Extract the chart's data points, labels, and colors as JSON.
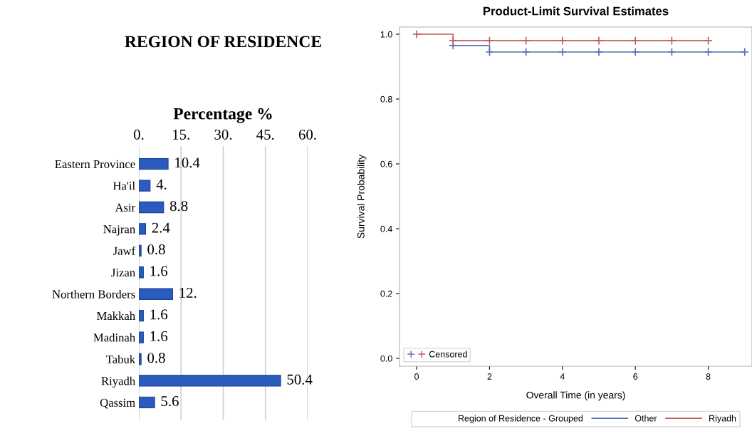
{
  "chart_data": [
    {
      "type": "bar",
      "orientation": "horizontal",
      "title": "REGION OF RESIDENCE",
      "xlabel": "Percentage %",
      "categories": [
        "Eastern Province",
        "Ha'il",
        "Asir",
        "Najran",
        "Jawf",
        "Jizan",
        "Northern Borders",
        "Makkah",
        "Madinah",
        "Tabuk",
        "Riyadh",
        "Qassim"
      ],
      "values": [
        10.4,
        4,
        8.8,
        2.4,
        0.8,
        1.6,
        12,
        1.6,
        1.6,
        0.8,
        50.4,
        5.6
      ],
      "value_labels": [
        "10.4",
        "4.",
        "8.8",
        "2.4",
        "0.8",
        "1.6",
        "12.",
        "1.6",
        "1.6",
        "0.8",
        "50.4",
        "5.6"
      ],
      "color": "#2a5cc0",
      "xlim": [
        0,
        60
      ],
      "xticks": [
        {
          "value": 0,
          "label": "0."
        },
        {
          "value": 15,
          "label": "15."
        },
        {
          "value": 30,
          "label": "30."
        },
        {
          "value": 45,
          "label": "45."
        },
        {
          "value": 60,
          "label": "60."
        }
      ],
      "grid": "x"
    },
    {
      "type": "step",
      "title": "Product-Limit Survival Estimates",
      "xlabel": "Overall Time (in years)",
      "ylabel": "Survival Probability",
      "legend_title": "Region of Residence - Grouped",
      "legend": "bottom",
      "xlim": [
        -0.47,
        9.2
      ],
      "ylim": [
        -0.024,
        1.022
      ],
      "xticks": [
        0,
        2,
        4,
        6,
        8
      ],
      "yticks": [
        {
          "value": 0,
          "label": "0.0"
        },
        {
          "value": 0.2,
          "label": "0.2"
        },
        {
          "value": 0.4,
          "label": "0.4"
        },
        {
          "value": 0.6,
          "label": "0.6"
        },
        {
          "value": 0.8,
          "label": "0.8"
        },
        {
          "value": 1,
          "label": "1.0"
        }
      ],
      "series": [
        {
          "name": "Other",
          "color": "#5a6fb5",
          "x": [
            1,
            2,
            9
          ],
          "values": [
            0.965,
            0.945,
            0.945
          ]
        },
        {
          "name": "Riyadh",
          "color": "#c05a5a",
          "x": [
            0,
            1,
            8
          ],
          "values": [
            1.0,
            0.98,
            0.98
          ]
        },
        {
          "name": "Censored",
          "type": "scatter",
          "marker": "cross",
          "x": [
            1,
            2,
            3,
            4,
            5,
            6,
            7,
            8,
            9,
            0,
            1,
            2,
            3,
            4,
            5,
            6,
            7,
            8
          ],
          "values": [
            0.965,
            0.945,
            0.945,
            0.945,
            0.945,
            0.945,
            0.945,
            0.945,
            0.945,
            1.0,
            0.98,
            0.98,
            0.98,
            0.98,
            0.98,
            0.98,
            0.98,
            0.98
          ],
          "colors": [
            "#5a6fb5",
            "#5a6fb5",
            "#5a6fb5",
            "#5a6fb5",
            "#5a6fb5",
            "#5a6fb5",
            "#5a6fb5",
            "#5a6fb5",
            "#5a6fb5",
            "#c05a5a",
            "#c05a5a",
            "#c05a5a",
            "#c05a5a",
            "#c05a5a",
            "#c05a5a",
            "#c05a5a",
            "#c05a5a",
            "#c05a5a"
          ]
        }
      ]
    }
  ]
}
